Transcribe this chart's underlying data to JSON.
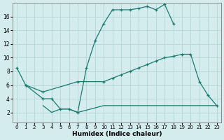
{
  "xlabel": "Humidex (Indice chaleur)",
  "bg_color": "#d4ecee",
  "grid_color": "#b8d8db",
  "line_color": "#1a7a6e",
  "xlim": [
    -0.5,
    23.5
  ],
  "ylim": [
    0.5,
    18
  ],
  "yticks": [
    2,
    4,
    6,
    8,
    10,
    12,
    14,
    16
  ],
  "xticks": [
    0,
    1,
    2,
    3,
    4,
    5,
    6,
    7,
    8,
    9,
    10,
    11,
    12,
    13,
    14,
    15,
    16,
    17,
    18,
    19,
    20,
    21,
    22,
    23
  ],
  "line1_x": [
    0,
    1,
    3,
    4,
    5,
    6,
    7,
    8,
    9,
    10,
    11,
    12,
    13,
    14,
    15,
    16,
    17,
    18
  ],
  "line1_y": [
    8.5,
    6.0,
    4.0,
    4.0,
    2.5,
    2.5,
    2.0,
    8.5,
    12.5,
    15.0,
    17.0,
    17.0,
    17.0,
    17.2,
    17.5,
    17.0,
    17.8,
    15.0
  ],
  "line2_x": [
    1,
    3,
    7,
    10,
    11,
    12,
    13,
    14,
    15,
    16,
    17,
    18,
    19,
    20,
    21,
    22,
    23
  ],
  "line2_y": [
    6.0,
    5.0,
    6.5,
    6.5,
    7.0,
    7.5,
    8.0,
    8.5,
    9.0,
    9.5,
    10.0,
    10.2,
    10.5,
    10.5,
    6.5,
    4.5,
    3.0
  ],
  "line3_x": [
    3,
    4,
    5,
    6,
    7,
    10,
    11,
    12,
    13,
    14,
    15,
    16,
    17,
    18,
    19,
    20,
    23
  ],
  "line3_y": [
    3.0,
    2.0,
    2.5,
    2.5,
    2.0,
    3.0,
    3.0,
    3.0,
    3.0,
    3.0,
    3.0,
    3.0,
    3.0,
    3.0,
    3.0,
    3.0,
    3.0
  ]
}
